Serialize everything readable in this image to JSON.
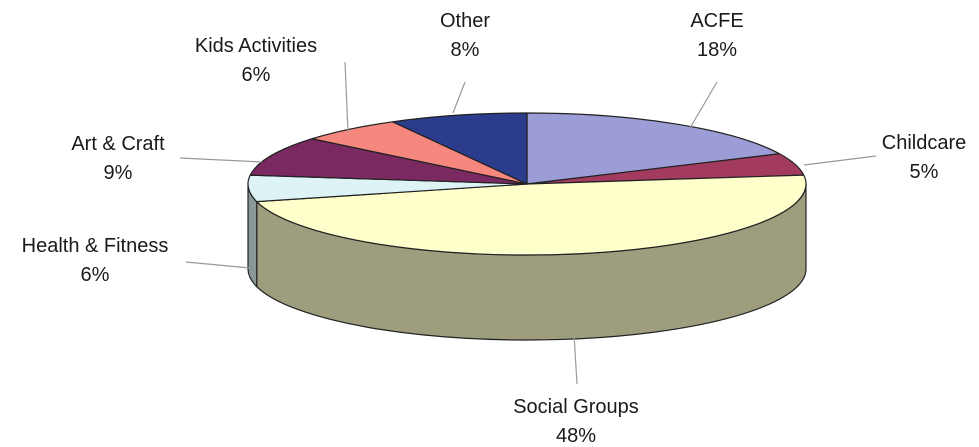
{
  "chart_data": {
    "type": "pie",
    "style": "3d",
    "title": "",
    "slices": [
      {
        "label": "ACFE",
        "value": 18,
        "value_label": "18%",
        "color": "#9C9CD6"
      },
      {
        "label": "Childcare",
        "value": 5,
        "value_label": "5%",
        "color": "#A33A5F"
      },
      {
        "label": "Social Groups",
        "value": 48,
        "value_label": "48%",
        "color": "#FFFFCC"
      },
      {
        "label": "Health & Fitness",
        "value": 6,
        "value_label": "6%",
        "color": "#DDF3F5"
      },
      {
        "label": "Art & Craft",
        "value": 9,
        "value_label": "9%",
        "color": "#7A2A60"
      },
      {
        "label": "Kids Activities",
        "value": 6,
        "value_label": "6%",
        "color": "#F6877F"
      },
      {
        "label": "Other",
        "value": 8,
        "value_label": "8%",
        "color": "#2B3C8C"
      }
    ]
  }
}
